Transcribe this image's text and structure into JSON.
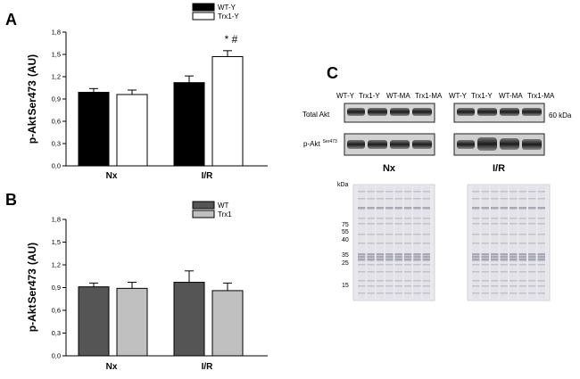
{
  "panels": {
    "a": "A",
    "b": "B",
    "c": "C"
  },
  "colors": {
    "wt_y": "#000000",
    "trx1_y": "#ffffff",
    "wt": "#555555",
    "trx1": "#c0c0c0"
  },
  "chart_data": [
    {
      "type": "bar",
      "panel": "A",
      "categories": [
        "Nx",
        "I/R"
      ],
      "series": [
        {
          "name": "WT-Y",
          "values": [
            0.99,
            1.12
          ],
          "errors": [
            0.05,
            0.09
          ]
        },
        {
          "name": "Trx1-Y",
          "values": [
            0.96,
            1.47
          ],
          "errors": [
            0.06,
            0.08
          ]
        }
      ],
      "ylabel_main": "p-Akt",
      "ylabel_sub": "Ser473",
      "ylabel_unit": "(AU)",
      "ylim": [
        0,
        1.8
      ],
      "yticks": [
        "0,0",
        "0,3",
        "0,6",
        "0,9",
        "1,2",
        "1,5",
        "1,8"
      ],
      "annotations": [
        {
          "text": "* #",
          "category": "I/R",
          "series": "Trx1-Y"
        }
      ],
      "legend": "top-left"
    },
    {
      "type": "bar",
      "panel": "B",
      "categories": [
        "Nx",
        "I/R"
      ],
      "series": [
        {
          "name": "WT",
          "values": [
            0.91,
            0.97
          ],
          "errors": [
            0.05,
            0.15
          ]
        },
        {
          "name": "Trx1",
          "values": [
            0.89,
            0.86
          ],
          "errors": [
            0.08,
            0.1
          ]
        }
      ],
      "ylabel_main": "p-Akt",
      "ylabel_sub": "Ser473",
      "ylabel_unit": "(AU)",
      "ylim": [
        0,
        1.8
      ],
      "yticks": [
        "0,0",
        "0,3",
        "0,6",
        "0,9",
        "1,2",
        "1,5",
        "1,8"
      ],
      "legend": "top-left"
    }
  ],
  "blot": {
    "lane_labels_left": [
      "WT-Y",
      "Trx1-Y",
      "WT-MA",
      "Trx1-MA"
    ],
    "lane_labels_right": [
      "WT-Y",
      "Trx1-Y",
      "WT-MA",
      "Trx1-MA"
    ],
    "row_total": "Total Akt",
    "row_p_main": "p-Akt",
    "row_p_sup": "Ser473",
    "size_label": "60 kDa",
    "group_left": "Nx",
    "group_right": "I/R",
    "kda_unit": "kDa",
    "markers": [
      "75",
      "55",
      "40",
      "35",
      "25",
      "15"
    ]
  }
}
